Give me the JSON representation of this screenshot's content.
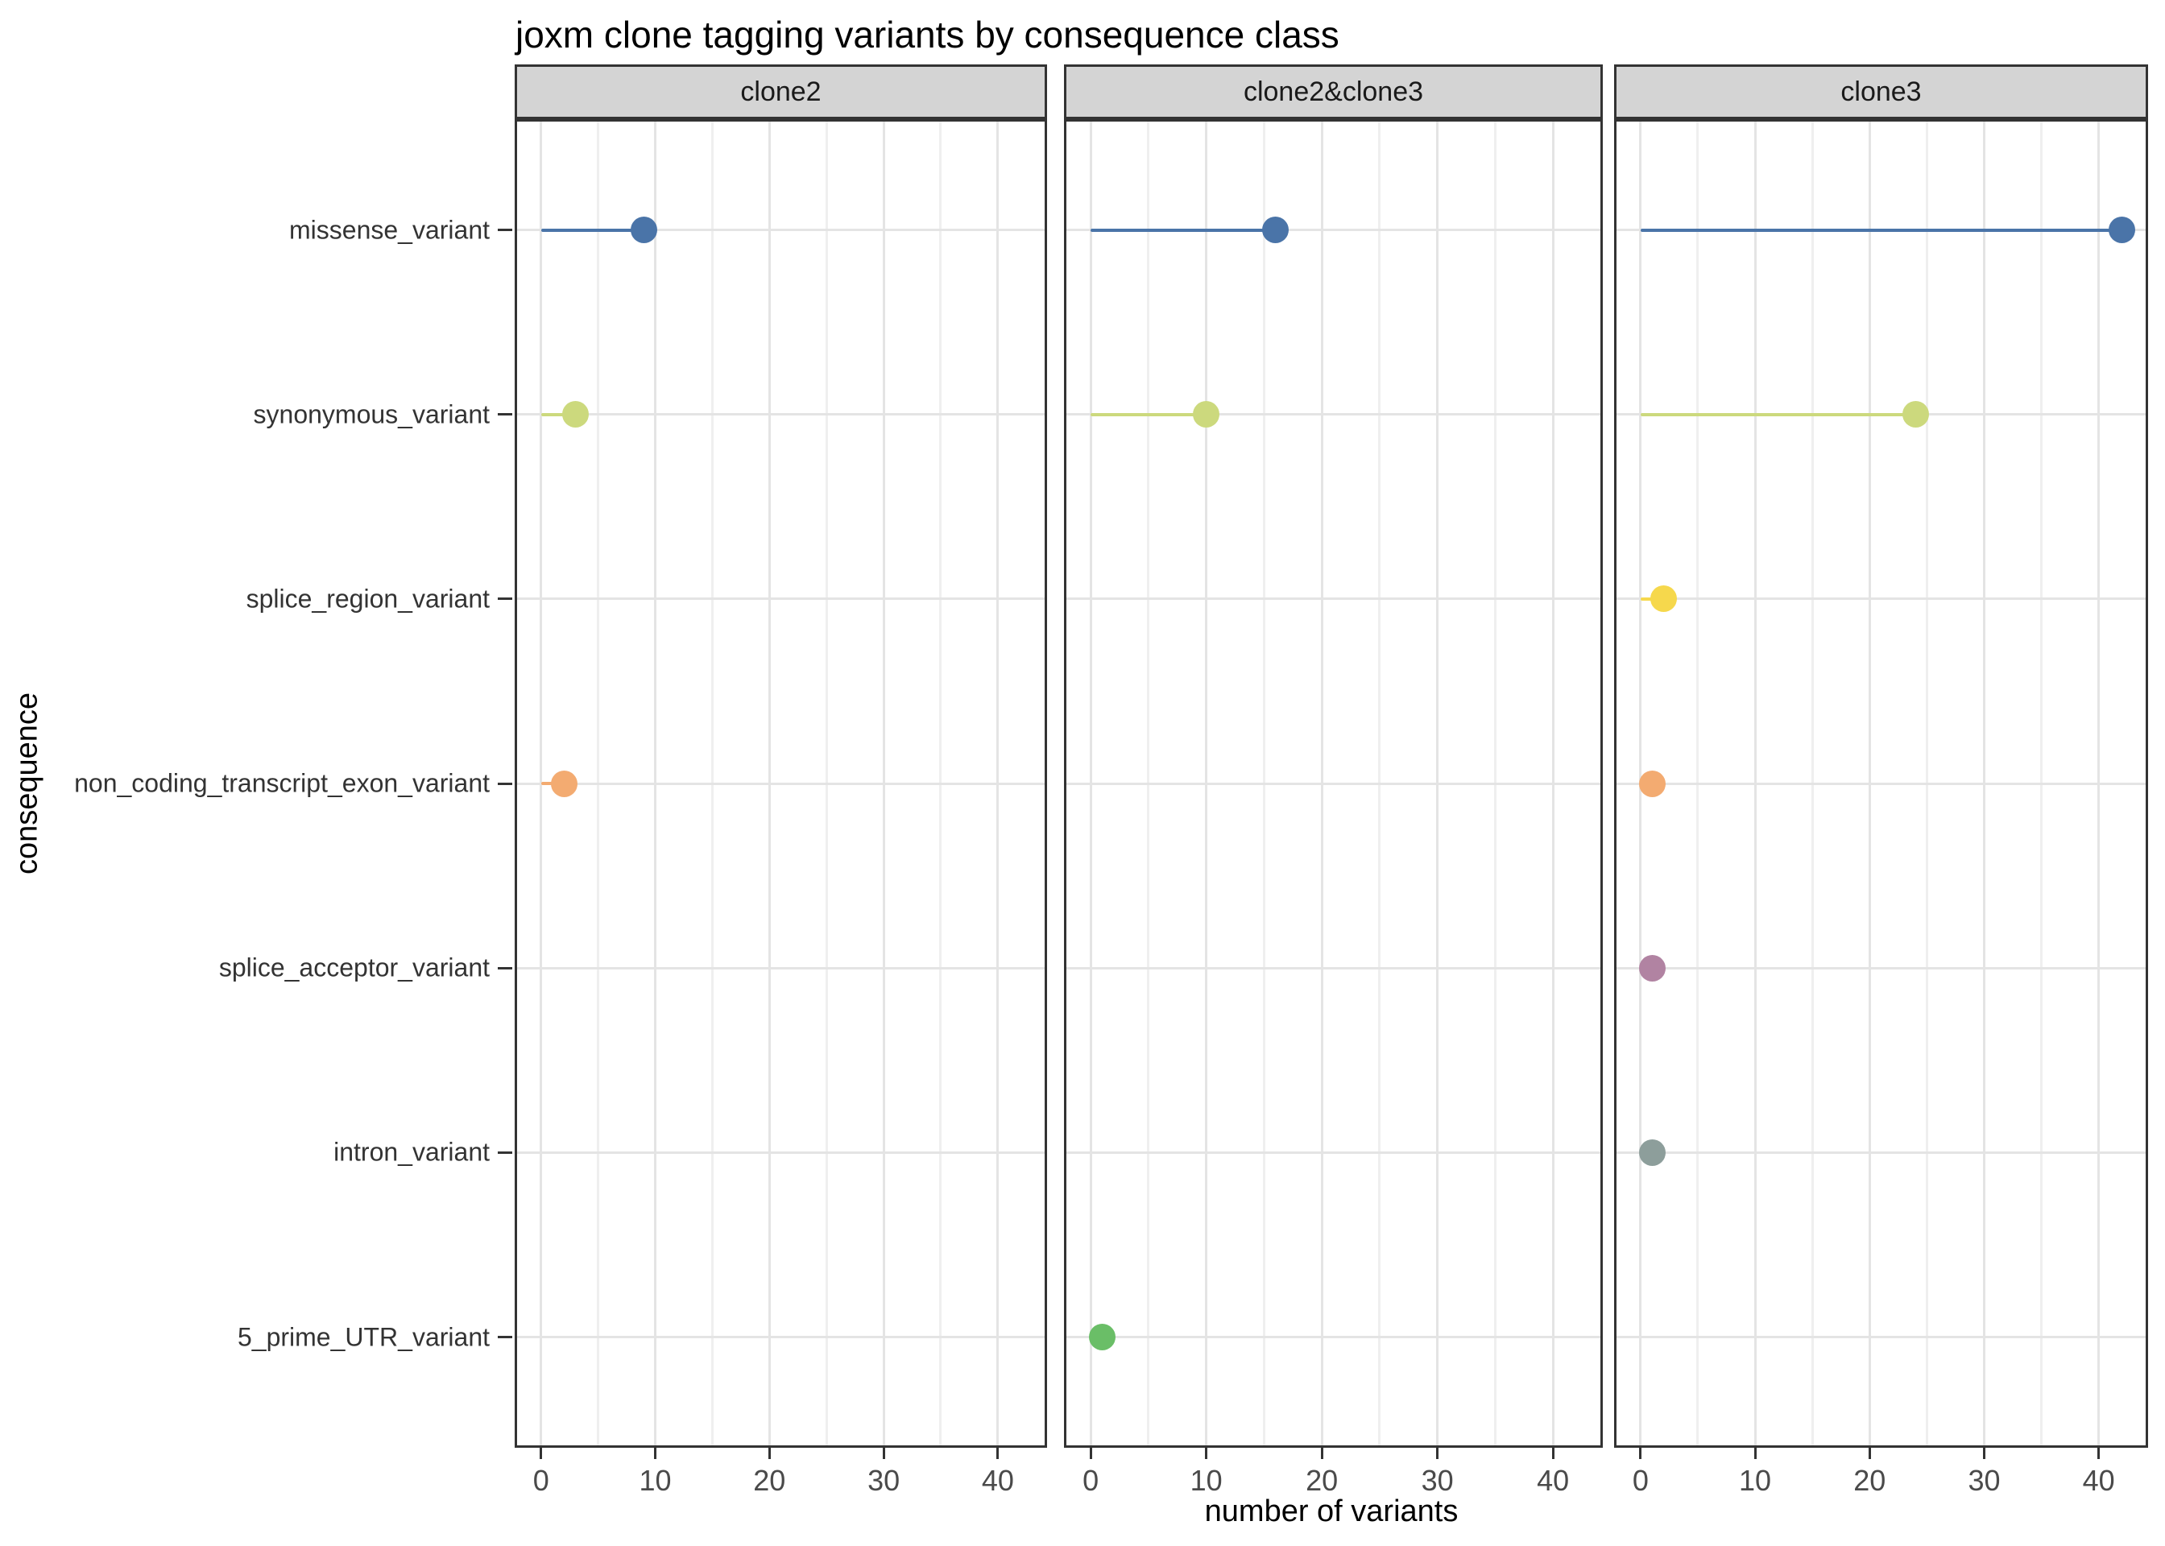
{
  "chart_data": {
    "type": "scatter",
    "subtype": "faceted-lollipop",
    "title": "joxm clone tagging variants by consequence class",
    "xlabel": "number of variants",
    "ylabel": "consequence",
    "legend": "none",
    "grid": true,
    "xlim": [
      -2.1,
      44.1
    ],
    "x_major_ticks": [
      0,
      10,
      20,
      30,
      40
    ],
    "x_minor_gridlines": [
      5,
      15,
      25,
      35
    ],
    "categories": [
      "missense_variant",
      "synonymous_variant",
      "splice_region_variant",
      "non_coding_transcript_exon_variant",
      "splice_acceptor_variant",
      "intron_variant",
      "5_prime_UTR_variant"
    ],
    "category_colors": {
      "missense_variant": "#4a74a8",
      "synonymous_variant": "#ccd97d",
      "splice_region_variant": "#f6d84c",
      "non_coding_transcript_exon_variant": "#f3ab71",
      "splice_acceptor_variant": "#b183a2",
      "intron_variant": "#8d9e9b",
      "5_prime_UTR_variant": "#6abe67"
    },
    "facets": [
      {
        "label": "clone2",
        "points": [
          {
            "category": "missense_variant",
            "value": 9
          },
          {
            "category": "synonymous_variant",
            "value": 3
          },
          {
            "category": "non_coding_transcript_exon_variant",
            "value": 2
          }
        ]
      },
      {
        "label": "clone2&clone3",
        "points": [
          {
            "category": "missense_variant",
            "value": 16
          },
          {
            "category": "synonymous_variant",
            "value": 10
          },
          {
            "category": "5_prime_UTR_variant",
            "value": 1
          }
        ]
      },
      {
        "label": "clone3",
        "points": [
          {
            "category": "missense_variant",
            "value": 42
          },
          {
            "category": "synonymous_variant",
            "value": 24
          },
          {
            "category": "splice_region_variant",
            "value": 2
          },
          {
            "category": "non_coding_transcript_exon_variant",
            "value": 1
          },
          {
            "category": "splice_acceptor_variant",
            "value": 1
          },
          {
            "category": "intron_variant",
            "value": 1
          }
        ]
      }
    ]
  },
  "colors": {
    "strip_bg": "#d4d4d4",
    "panel_border": "#333333",
    "grid_major": "#e4e4e4",
    "grid_minor": "#efefef",
    "axis_text": "#4a4a4a",
    "tick": "#333333"
  }
}
